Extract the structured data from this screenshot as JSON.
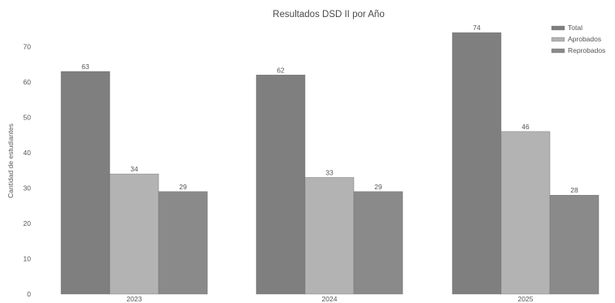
{
  "chart_data": {
    "type": "bar",
    "title": "Resultados DSD II por Año",
    "xlabel": "",
    "ylabel": "Cantidad de estudiantes",
    "categories": [
      "2023",
      "2024",
      "2025"
    ],
    "series": [
      {
        "name": "Total",
        "values": [
          63,
          62,
          74
        ],
        "color": "#7f7f7f"
      },
      {
        "name": "Aprobados",
        "values": [
          34,
          33,
          46
        ],
        "color": "#b3b3b3"
      },
      {
        "name": "Reprobados",
        "values": [
          29,
          29,
          28
        ],
        "color": "#8a8a8a"
      }
    ],
    "ylim": [
      0,
      75
    ],
    "yticks": [
      0,
      10,
      20,
      30,
      40,
      50,
      60,
      70
    ],
    "data_labels": true,
    "grid": false,
    "legend_position": "top-right"
  }
}
